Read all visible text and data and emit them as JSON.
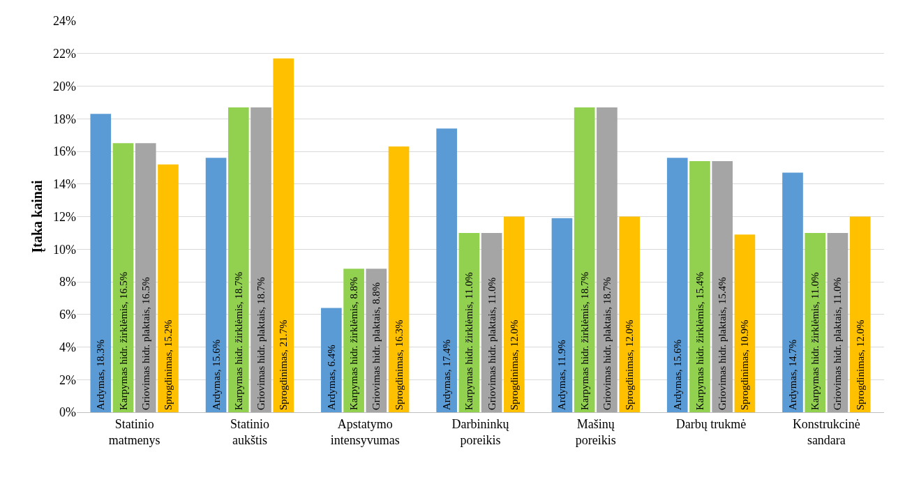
{
  "chart_data": {
    "type": "bar",
    "ylabel": "Įtaka kainai",
    "categories": [
      "Statinio\nmatmenys",
      "Statinio\naukštis",
      "Apstatymo\nintensyvumas",
      "Darbininkų\nporeikis",
      "Mašinų\nporeikis",
      "Darbų trukmė",
      "Konstrukcinė\nsandara"
    ],
    "series": [
      {
        "color": "#5b9bd5",
        "values": [
          18.3,
          15.6,
          6.4,
          17.4,
          11.9,
          15.6,
          14.7
        ],
        "value_labels": [
          "Ardymas, 18.3%",
          "Ardymas, 15.6%",
          "Ardymas, 6.4%",
          "Ardymas, 17.4%",
          "Ardymas, 11.9%",
          "Ardymas, 15.6%",
          "Ardymas, 14.7%"
        ]
      },
      {
        "color": "#92d050",
        "values": [
          16.5,
          18.7,
          8.8,
          11.0,
          18.7,
          15.4,
          11.0
        ],
        "value_labels": [
          "Karpymas hidr. žirklėmis, 16.5%",
          "Karpymas hidr. žirklėmis, 18.7%",
          "Karpymas hidr. žirklėmis, 8.8%",
          "Karpymas hidr. žirklėmis, 11.0%",
          "Karpymas hidr. žirklėmis, 18.7%",
          "Karpymas hidr. žirklėmis, 15.4%",
          "Karpymas hidr. žirklėmis, 11.0%"
        ]
      },
      {
        "color": "#a5a5a5",
        "values": [
          16.5,
          18.7,
          8.8,
          11.0,
          18.7,
          15.4,
          11.0
        ],
        "value_labels": [
          "Griovimas hidr. plaktais, 16.5%",
          "Griovimas hidr. plaktais, 18.7%",
          "Griovimas hidr. plaktais, 8.8%",
          "Griovimas hidr. plaktais, 11.0%",
          "Griovimas hidr. plaktais, 18.7%",
          "Griovimas hidr. plaktais, 15.4%",
          "Griovimas hidr. plaktais, 11.0%"
        ]
      },
      {
        "color": "#ffc000",
        "values": [
          15.2,
          21.7,
          16.3,
          12.0,
          12.0,
          10.9,
          12.0
        ],
        "value_labels": [
          "Sprogdinimas, 15.2%",
          "Sprogdinimas, 21.7%",
          "Sprogdinimas, 16.3%",
          "Sprogdinimas, 12.0%",
          "Sprogdinimas, 12.0%",
          "Sprogdinimas, 10.9%",
          "Sprogdinimas, 12.0%"
        ]
      }
    ],
    "ylim": [
      0,
      24
    ],
    "yticks": [
      {
        "value": 0,
        "label": "0%"
      },
      {
        "value": 2,
        "label": "2%"
      },
      {
        "value": 4,
        "label": "4%"
      },
      {
        "value": 6,
        "label": "6%"
      },
      {
        "value": 8,
        "label": "8%"
      },
      {
        "value": 10,
        "label": "10%"
      },
      {
        "value": 12,
        "label": "12%"
      },
      {
        "value": 14,
        "label": "14%"
      },
      {
        "value": 16,
        "label": "16%"
      },
      {
        "value": 18,
        "label": "18%"
      },
      {
        "value": 20,
        "label": "20%"
      },
      {
        "value": 22,
        "label": "22%"
      },
      {
        "value": 24,
        "label": "24%"
      }
    ],
    "grid": "y",
    "legend": false
  }
}
